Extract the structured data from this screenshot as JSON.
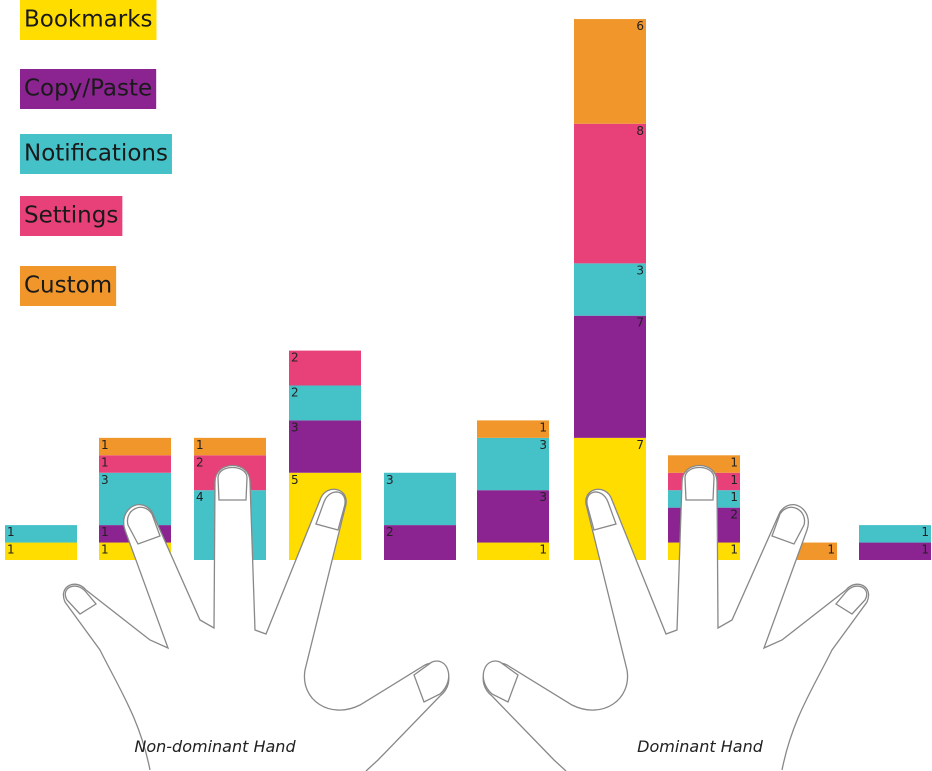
{
  "chart_data": {
    "type": "stacked-bar",
    "categories": [
      null,
      null,
      null,
      null,
      null,
      null,
      null,
      null,
      null,
      null
    ],
    "series": [
      {
        "name": "Bookmarks",
        "color": "#ffdd00",
        "values": [
          1,
          1,
          0,
          5,
          0,
          1,
          7,
          1,
          0,
          0
        ]
      },
      {
        "name": "Copy/Paste",
        "color": "#8b2391",
        "values": [
          0,
          1,
          0,
          3,
          2,
          3,
          7,
          2,
          0,
          1
        ]
      },
      {
        "name": "Notifications",
        "color": "#45c1c8",
        "values": [
          1,
          3,
          4,
          2,
          3,
          3,
          3,
          1,
          0,
          1
        ]
      },
      {
        "name": "Settings",
        "color": "#e8417a",
        "values": [
          0,
          1,
          2,
          2,
          0,
          0,
          8,
          1,
          0,
          0
        ]
      },
      {
        "name": "Custom",
        "color": "#f0962a",
        "values": [
          0,
          1,
          1,
          0,
          0,
          1,
          6,
          1,
          1,
          0
        ]
      }
    ],
    "annotations": [
      "Non-dominant Hand",
      "Dominant Hand"
    ]
  }
}
